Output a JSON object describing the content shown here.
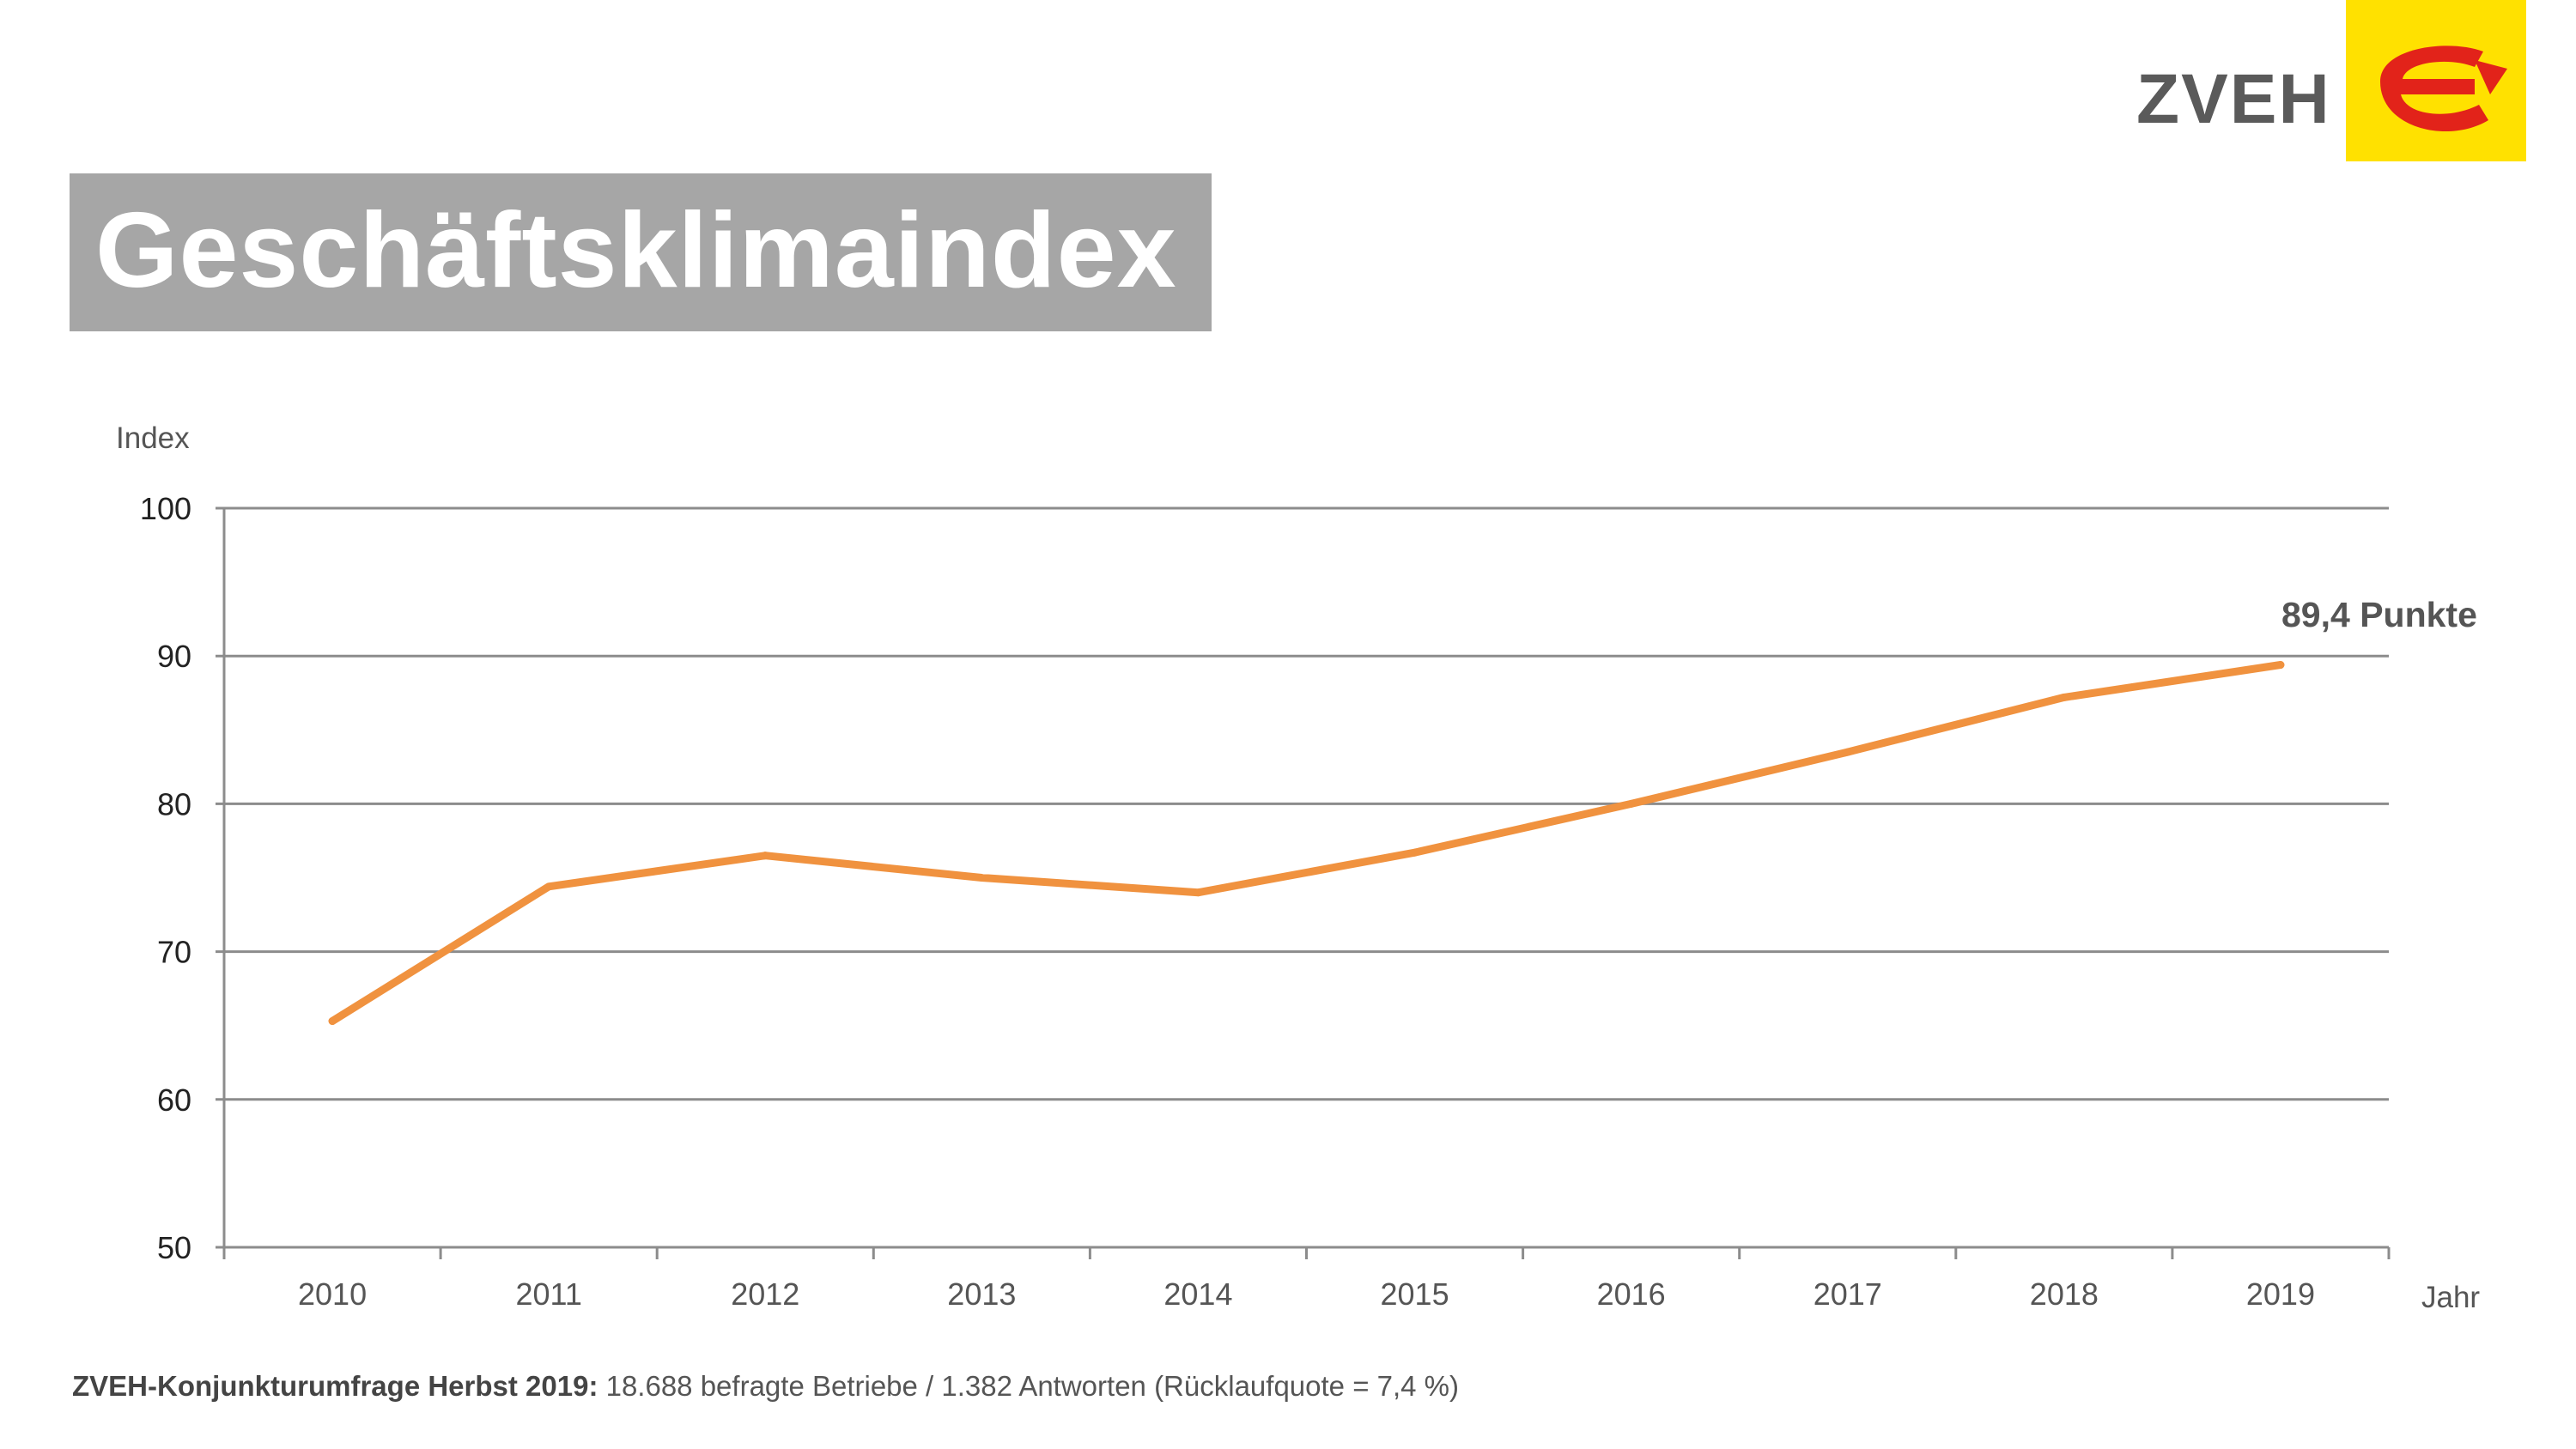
{
  "header": {
    "title": "Geschäftsklimaindex",
    "brand": "ZVEH"
  },
  "colors": {
    "line": "#f0923f",
    "grid": "#8c8c8c",
    "title_bg": "#a6a6a6",
    "logo_bg": "#ffe100",
    "logo_mark": "#e2231a"
  },
  "chart_data": {
    "type": "line",
    "ylabel": "Index",
    "xlabel": "Jahr",
    "ylim": [
      50,
      100
    ],
    "yticks": [
      50,
      60,
      70,
      80,
      90,
      100
    ],
    "grid": true,
    "categories": [
      "2010",
      "2011",
      "2012",
      "2013",
      "2014",
      "2015",
      "2016",
      "2017",
      "2018",
      "2019"
    ],
    "series": [
      {
        "values": [
          65.3,
          74.4,
          76.5,
          75.0,
          74.0,
          76.7,
          80.0,
          83.5,
          87.2,
          89.4
        ]
      }
    ],
    "annotation": "89,4 Punkte"
  },
  "footer": {
    "bold": "ZVEH-Konjunkturumfrage Herbst 2019:",
    "text": " 18.688 befragte Betriebe / 1.382 Antworten (Rücklaufquote = 7,4 %)"
  }
}
